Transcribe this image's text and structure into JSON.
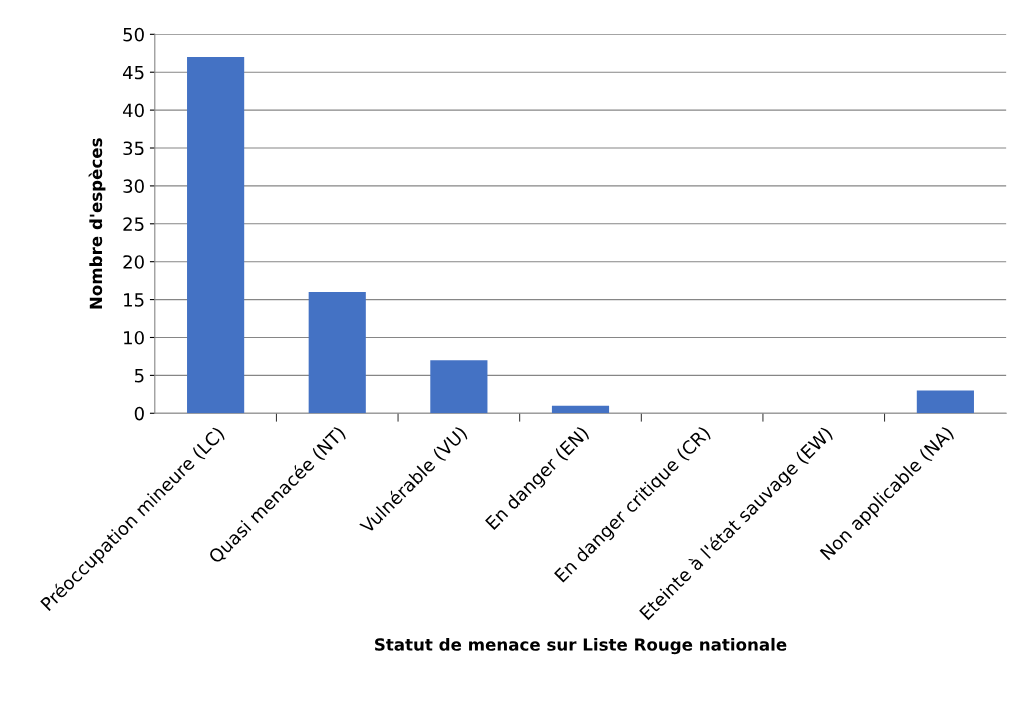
{
  "chart_data": {
    "type": "bar",
    "categories": [
      "Préoccupation mineure (LC)",
      "Quasi menacée (NT)",
      "Vulnérable (VU)",
      "En danger (EN)",
      "En danger critique (CR)",
      "Eteinte à l'état sauvage (EW)",
      "Non applicable (NA)"
    ],
    "values": [
      47,
      16,
      7,
      1,
      0,
      0,
      3
    ],
    "color": "#4472c4",
    "xlabel": "Statut de menace sur Liste Rouge nationale",
    "ylabel": "Nombre d'espèces",
    "ylim": [
      0,
      50
    ],
    "yticks": [
      0,
      5,
      10,
      15,
      20,
      25,
      30,
      35,
      40,
      45,
      50
    ],
    "grid": "y",
    "legend": false
  }
}
